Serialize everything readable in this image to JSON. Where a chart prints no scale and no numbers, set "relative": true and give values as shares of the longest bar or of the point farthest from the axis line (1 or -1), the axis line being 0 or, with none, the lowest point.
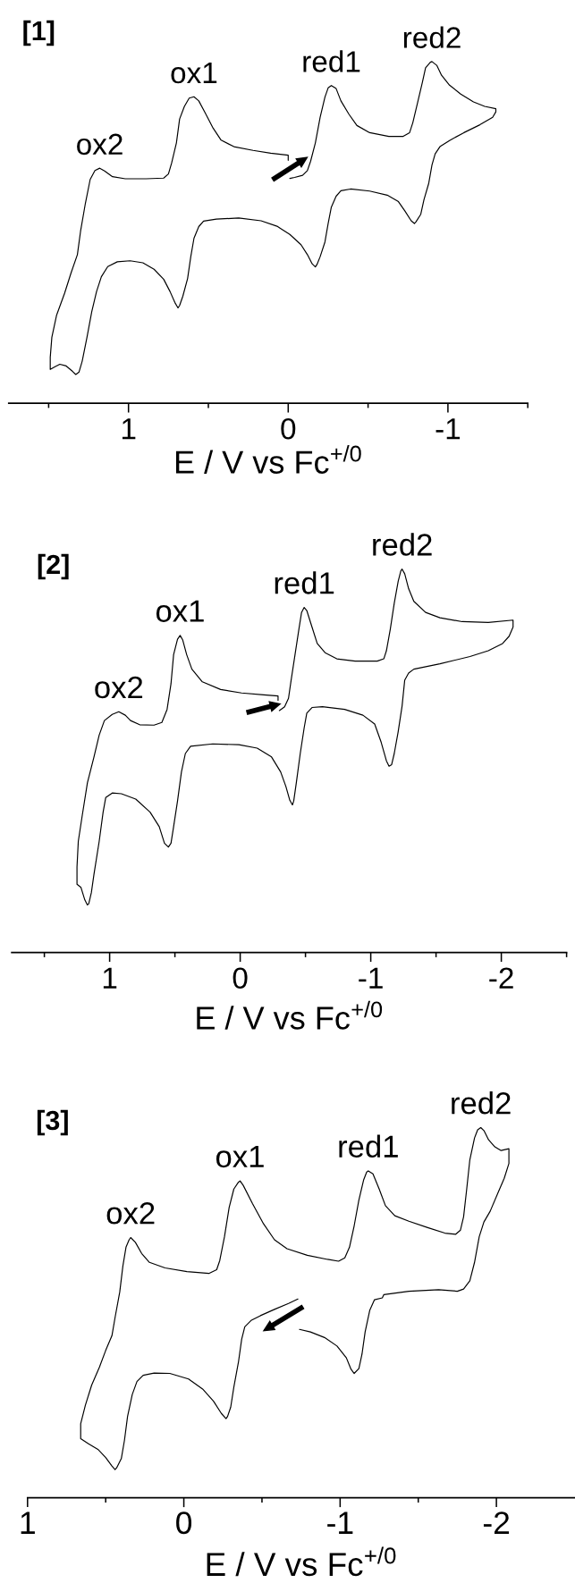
{
  "chart_data": [
    {
      "type": "line",
      "title": "[1]",
      "xlabel": "E / V vs Fc$^{+/0}$",
      "relative": true,
      "xlim": [
        1.75,
        -1.5
      ],
      "xticks": [
        {
          "value": 1.5,
          "label": null
        },
        1,
        {
          "value": 0.5,
          "label": null
        },
        0,
        {
          "value": -0.5,
          "label": null
        },
        -1,
        {
          "value": -1.5,
          "label": null
        }
      ],
      "annotations": [
        {
          "text": "ox2",
          "x": 1.18,
          "y": 0.688
        },
        {
          "text": "ox1",
          "x": 0.59,
          "y": 0.897
        },
        {
          "text": "red1",
          "x": -0.27,
          "y": 0.93
        },
        {
          "text": "red2",
          "x": -0.9,
          "y": 1.0
        }
      ],
      "series": [
        {
          "color": "#000000",
          "x": [
            -0.01,
            -0.04,
            -0.09,
            -0.12,
            -0.14,
            -0.17,
            -0.2,
            -0.23,
            -0.25,
            -0.27,
            -0.3,
            -0.33,
            -0.38,
            -0.43,
            -0.51,
            -0.63,
            -0.72,
            -0.76,
            -0.78,
            -0.81,
            -0.84,
            -0.86,
            -0.89,
            -0.9,
            -0.93,
            -0.96,
            -1.01,
            -1.08,
            -1.16,
            -1.23,
            -1.3,
            -1.3,
            -1.28,
            -1.2,
            -1.1,
            -1.01,
            -0.95,
            -0.92,
            -0.9,
            -0.88,
            -0.85,
            -0.83,
            -0.8,
            -0.79,
            -0.77,
            -0.73,
            -0.69,
            -0.62,
            -0.51,
            -0.39,
            -0.33,
            -0.3,
            -0.27,
            -0.25,
            -0.23,
            -0.2,
            -0.18,
            -0.17,
            -0.15,
            -0.12,
            -0.08,
            -0.01,
            0.07,
            0.17,
            0.31,
            0.45,
            0.53,
            0.56,
            0.59,
            0.61,
            0.63,
            0.66,
            0.68,
            0.69,
            0.71,
            0.74,
            0.78,
            0.84,
            0.91,
            0.99,
            1.07,
            1.13,
            1.17,
            1.2,
            1.23,
            1.26,
            1.29,
            1.31,
            1.33,
            1.35,
            1.39,
            1.43,
            1.46,
            1.49,
            1.49,
            1.48,
            1.45,
            1.4,
            1.36,
            1.32,
            1.3,
            1.27,
            1.24,
            1.21,
            1.18,
            1.15,
            1.1,
            1.02,
            0.89,
            0.78,
            0.75,
            0.73,
            0.7,
            0.68,
            0.65,
            0.62,
            0.59,
            0.56,
            0.52,
            0.47,
            0.42,
            0.34,
            0.22,
            0.11,
            0.0,
            0.0
          ],
          "values": [
            0.658,
            0.661,
            0.667,
            0.681,
            0.708,
            0.762,
            0.837,
            0.896,
            0.923,
            0.93,
            0.921,
            0.885,
            0.846,
            0.813,
            0.792,
            0.781,
            0.781,
            0.792,
            0.821,
            0.88,
            0.939,
            0.982,
            0.998,
            1.0,
            0.989,
            0.96,
            0.931,
            0.905,
            0.882,
            0.869,
            0.862,
            0.853,
            0.837,
            0.815,
            0.792,
            0.769,
            0.751,
            0.73,
            0.697,
            0.644,
            0.596,
            0.553,
            0.531,
            0.526,
            0.534,
            0.563,
            0.59,
            0.609,
            0.621,
            0.627,
            0.622,
            0.606,
            0.574,
            0.526,
            0.472,
            0.429,
            0.406,
            0.399,
            0.408,
            0.435,
            0.464,
            0.494,
            0.518,
            0.534,
            0.542,
            0.539,
            0.533,
            0.517,
            0.483,
            0.429,
            0.365,
            0.313,
            0.286,
            0.279,
            0.295,
            0.327,
            0.363,
            0.392,
            0.411,
            0.417,
            0.414,
            0.4,
            0.37,
            0.327,
            0.268,
            0.193,
            0.123,
            0.091,
            0.084,
            0.093,
            0.109,
            0.114,
            0.107,
            0.099,
            0.134,
            0.193,
            0.258,
            0.322,
            0.381,
            0.435,
            0.504,
            0.585,
            0.655,
            0.681,
            0.688,
            0.68,
            0.663,
            0.657,
            0.657,
            0.659,
            0.671,
            0.703,
            0.762,
            0.832,
            0.869,
            0.893,
            0.897,
            0.885,
            0.85,
            0.805,
            0.77,
            0.751,
            0.74,
            0.732,
            0.726,
            0.711
          ]
        }
      ]
    },
    {
      "type": "line",
      "title": "[2]",
      "xlabel": "E / V vs Fc$^{+/0}$",
      "relative": true,
      "xlim": [
        1.75,
        -2.5
      ],
      "xticks": [
        {
          "value": 1.5,
          "label": null
        },
        1,
        {
          "value": 0.5,
          "label": null
        },
        0,
        {
          "value": -0.5,
          "label": null
        },
        -1,
        {
          "value": -1.5,
          "label": null
        },
        -2,
        {
          "value": -2.5,
          "label": null
        }
      ],
      "annotations": [
        {
          "text": "ox2",
          "x": 0.93,
          "y": 0.628
        },
        {
          "text": "ox1",
          "x": 0.46,
          "y": 0.827
        },
        {
          "text": "red1",
          "x": -0.49,
          "y": 0.9
        },
        {
          "text": "red2",
          "x": -1.24,
          "y": 1.0
        }
      ],
      "series": [
        {
          "color": "#000000",
          "x": [
            -0.3,
            -0.34,
            -0.37,
            -0.39,
            -0.42,
            -0.45,
            -0.47,
            -0.49,
            -0.51,
            -0.55,
            -0.59,
            -0.65,
            -0.74,
            -0.88,
            -1.05,
            -1.1,
            -1.12,
            -1.15,
            -1.18,
            -1.21,
            -1.23,
            -1.24,
            -1.26,
            -1.29,
            -1.33,
            -1.42,
            -1.53,
            -1.7,
            -1.9,
            -2.09,
            -2.09,
            -2.06,
            -2.01,
            -1.9,
            -1.76,
            -1.53,
            -1.33,
            -1.29,
            -1.26,
            -1.24,
            -1.21,
            -1.18,
            -1.16,
            -1.14,
            -1.12,
            -1.08,
            -1.03,
            -0.94,
            -0.8,
            -0.63,
            -0.55,
            -0.51,
            -0.49,
            -0.46,
            -0.43,
            -0.41,
            -0.4,
            -0.38,
            -0.35,
            -0.31,
            -0.24,
            -0.13,
            0.01,
            0.21,
            0.38,
            0.42,
            0.45,
            0.48,
            0.51,
            0.53,
            0.55,
            0.58,
            0.62,
            0.69,
            0.8,
            0.91,
            0.98,
            1.03,
            1.05,
            1.08,
            1.12,
            1.14,
            1.16,
            1.17,
            1.19,
            1.22,
            1.25,
            1.25,
            1.24,
            1.21,
            1.17,
            1.12,
            1.08,
            1.04,
            0.98,
            0.93,
            0.88,
            0.84,
            0.77,
            0.66,
            0.6,
            0.56,
            0.53,
            0.51,
            0.48,
            0.46,
            0.44,
            0.41,
            0.37,
            0.29,
            0.15,
            -0.01,
            -0.18,
            -0.29,
            -0.29
          ],
          "values": [
            0.631,
            0.641,
            0.663,
            0.71,
            0.777,
            0.844,
            0.887,
            0.9,
            0.892,
            0.849,
            0.806,
            0.782,
            0.766,
            0.76,
            0.76,
            0.766,
            0.787,
            0.844,
            0.911,
            0.968,
            0.995,
            1.0,
            0.988,
            0.949,
            0.916,
            0.887,
            0.873,
            0.863,
            0.861,
            0.867,
            0.849,
            0.825,
            0.806,
            0.787,
            0.772,
            0.753,
            0.739,
            0.729,
            0.71,
            0.643,
            0.576,
            0.519,
            0.49,
            0.486,
            0.5,
            0.548,
            0.596,
            0.619,
            0.634,
            0.641,
            0.639,
            0.624,
            0.586,
            0.519,
            0.443,
            0.395,
            0.385,
            0.397,
            0.433,
            0.471,
            0.51,
            0.533,
            0.542,
            0.544,
            0.538,
            0.519,
            0.471,
            0.395,
            0.328,
            0.285,
            0.275,
            0.285,
            0.328,
            0.366,
            0.4,
            0.414,
            0.416,
            0.404,
            0.366,
            0.29,
            0.204,
            0.156,
            0.127,
            0.124,
            0.137,
            0.17,
            0.178,
            0.223,
            0.29,
            0.357,
            0.443,
            0.51,
            0.567,
            0.605,
            0.621,
            0.628,
            0.619,
            0.605,
            0.594,
            0.593,
            0.6,
            0.634,
            0.701,
            0.777,
            0.817,
            0.827,
            0.815,
            0.777,
            0.739,
            0.706,
            0.686,
            0.677,
            0.672,
            0.669,
            0.658
          ]
        }
      ]
    },
    {
      "type": "line",
      "title": "[3]",
      "xlabel": "E / V vs Fc$^{+/0}$",
      "relative": true,
      "xlim": [
        1,
        -2.5
      ],
      "xticks": [
        1,
        {
          "value": 0.5,
          "label": null
        },
        0,
        {
          "value": -0.5,
          "label": null
        },
        -1,
        {
          "value": -1.5,
          "label": null
        },
        -2
      ],
      "annotations": [
        {
          "text": "ox2",
          "x": 0.34,
          "y": 0.703
        },
        {
          "text": "ox1",
          "x": -0.36,
          "y": 0.856
        },
        {
          "text": "red1",
          "x": -1.18,
          "y": 0.883
        },
        {
          "text": "red2",
          "x": -1.9,
          "y": 1.0
        }
      ],
      "series": [
        {
          "color": "#000000",
          "x": [
            -0.73,
            -0.67,
            -0.58,
            -0.49,
            -0.43,
            -0.39,
            -0.37,
            -0.35,
            -0.32,
            -0.3,
            -0.28,
            -0.27,
            -0.24,
            -0.19,
            -0.12,
            -0.03,
            0.09,
            0.19,
            0.26,
            0.3,
            0.33,
            0.36,
            0.38,
            0.4,
            0.43,
            0.44,
            0.46,
            0.5,
            0.55,
            0.61,
            0.66,
            0.66,
            0.63,
            0.59,
            0.54,
            0.5,
            0.46,
            0.44,
            0.41,
            0.39,
            0.37,
            0.35,
            0.34,
            0.31,
            0.27,
            0.22,
            0.12,
            -0.02,
            -0.16,
            -0.21,
            -0.23,
            -0.26,
            -0.29,
            -0.32,
            -0.35,
            -0.36,
            -0.38,
            -0.44,
            -0.51,
            -0.58,
            -0.66,
            -0.79,
            -0.92,
            -0.99,
            -1.03,
            -1.06,
            -1.09,
            -1.12,
            -1.15,
            -1.17,
            -1.18,
            -1.21,
            -1.25,
            -1.29,
            -1.35,
            -1.44,
            -1.56,
            -1.67,
            -1.74,
            -1.77,
            -1.79,
            -1.81,
            -1.83,
            -1.86,
            -1.88,
            -1.9,
            -1.92,
            -1.95,
            -1.99,
            -2.03,
            -2.08,
            -2.08,
            -2.05,
            -2.01,
            -1.96,
            -1.92,
            -1.89,
            -1.86,
            -1.83,
            -1.79,
            -1.75,
            -1.63,
            -1.44,
            -1.28,
            -1.27,
            -1.22,
            -1.19,
            -1.16,
            -1.14,
            -1.12,
            -1.09,
            -1.07,
            -1.04,
            -0.98,
            -0.9,
            -0.81,
            -0.74
          ],
          "values": [
            0.537,
            0.525,
            0.509,
            0.492,
            0.479,
            0.462,
            0.428,
            0.368,
            0.299,
            0.245,
            0.22,
            0.214,
            0.228,
            0.261,
            0.294,
            0.321,
            0.336,
            0.337,
            0.331,
            0.314,
            0.279,
            0.22,
            0.155,
            0.106,
            0.081,
            0.076,
            0.086,
            0.109,
            0.131,
            0.146,
            0.16,
            0.2,
            0.25,
            0.304,
            0.353,
            0.398,
            0.438,
            0.487,
            0.556,
            0.626,
            0.677,
            0.697,
            0.703,
            0.69,
            0.66,
            0.636,
            0.621,
            0.611,
            0.606,
            0.616,
            0.641,
            0.705,
            0.784,
            0.834,
            0.853,
            0.856,
            0.844,
            0.794,
            0.74,
            0.697,
            0.673,
            0.655,
            0.644,
            0.639,
            0.648,
            0.677,
            0.735,
            0.804,
            0.858,
            0.88,
            0.883,
            0.875,
            0.834,
            0.789,
            0.762,
            0.747,
            0.73,
            0.715,
            0.712,
            0.723,
            0.759,
            0.834,
            0.913,
            0.972,
            0.994,
            1.0,
            0.992,
            0.967,
            0.948,
            0.938,
            0.943,
            0.903,
            0.863,
            0.824,
            0.774,
            0.745,
            0.705,
            0.636,
            0.586,
            0.564,
            0.558,
            0.562,
            0.558,
            0.549,
            0.54,
            0.535,
            0.507,
            0.448,
            0.388,
            0.349,
            0.336,
            0.347,
            0.378,
            0.41,
            0.433,
            0.448,
            0.455
          ]
        }
      ]
    }
  ]
}
